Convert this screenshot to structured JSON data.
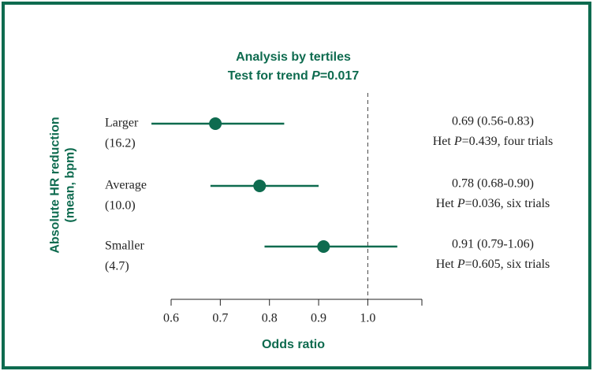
{
  "chart_data": {
    "type": "forest",
    "title": [
      [
        {
          "text": "Analysis by tertiles"
        }
      ],
      [
        {
          "text": "Test for trend "
        },
        {
          "text": "P",
          "italic": true
        },
        {
          "text": "=0.017"
        }
      ]
    ],
    "ylabel": [
      "Absolute HR reduction",
      "(mean, bpm)"
    ],
    "xlabel": "Odds ratio",
    "categories": [
      "Larger",
      "Average",
      "Smaller"
    ],
    "sublabels": [
      "(16.2)",
      "(10.0)",
      "(4.7)"
    ],
    "values": [
      0.69,
      0.78,
      0.91
    ],
    "lower": [
      0.56,
      0.68,
      0.79
    ],
    "upper": [
      0.83,
      0.9,
      1.06
    ],
    "value_labels": [
      "0.69 (0.56-0.83)",
      "0.78 (0.68-0.90)",
      "0.91 (0.79-1.06)"
    ],
    "het_labels": [
      [
        {
          "text": "Het "
        },
        {
          "text": "P",
          "italic": true
        },
        {
          "text": "=0.439, four trials"
        }
      ],
      [
        {
          "text": "Het "
        },
        {
          "text": "P",
          "italic": true
        },
        {
          "text": "=0.036, six trials"
        }
      ],
      [
        {
          "text": "Het "
        },
        {
          "text": "P",
          "italic": true
        },
        {
          "text": "=0.605, six trials"
        }
      ]
    ],
    "xlim": [
      0.6,
      1.11
    ],
    "xticks": [
      {
        "value": 0.6,
        "label": "0.6"
      },
      {
        "value": 0.7,
        "label": "0.7"
      },
      {
        "value": 0.8,
        "label": "0.8"
      },
      {
        "value": 0.9,
        "label": "0.9"
      },
      {
        "value": 1.0,
        "label": "1.0"
      }
    ],
    "reference_line": 1,
    "color": "#0e6b4f"
  }
}
